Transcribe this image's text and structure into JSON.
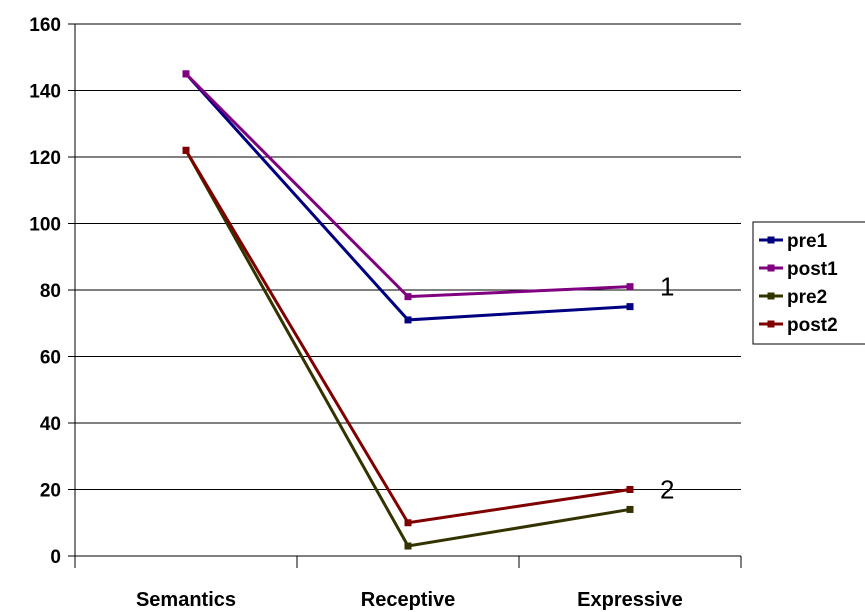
{
  "chart_data": {
    "type": "line",
    "title": "",
    "xlabel": "",
    "ylabel": "",
    "categories": [
      "Semantics",
      "Receptive",
      "Expressive"
    ],
    "ylim": [
      0,
      160
    ],
    "yticks": [
      0,
      20,
      40,
      60,
      80,
      100,
      120,
      140,
      160
    ],
    "grid": "horizontal",
    "legend_position": "right",
    "series": [
      {
        "name": "pre1",
        "color": "#000080",
        "values": [
          145,
          71,
          75
        ]
      },
      {
        "name": "post1",
        "color": "#800080",
        "values": [
          145,
          78,
          81
        ]
      },
      {
        "name": "pre2",
        "color": "#333300",
        "values": [
          122,
          3,
          14
        ]
      },
      {
        "name": "post2",
        "color": "#800000",
        "values": [
          122,
          10,
          20
        ]
      }
    ],
    "annotations": [
      {
        "text": "1",
        "x": "Expressive",
        "y": 81
      },
      {
        "text": "2",
        "x": "Expressive",
        "y": 20
      }
    ]
  }
}
